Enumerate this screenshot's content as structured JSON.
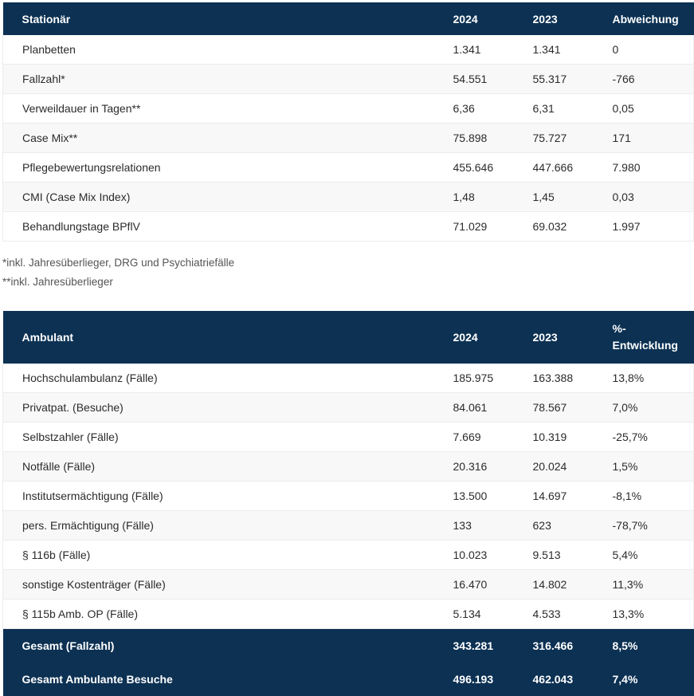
{
  "stationaer": {
    "headers": [
      "Stationär",
      "2024",
      "2023",
      "Abweichung"
    ],
    "rows": [
      [
        "Planbetten",
        "1.341",
        "1.341",
        "0"
      ],
      [
        "Fallzahl*",
        "54.551",
        "55.317",
        "-766"
      ],
      [
        "Verweildauer in Tagen**",
        "6,36",
        "6,31",
        "0,05"
      ],
      [
        "Case Mix**",
        "75.898",
        "75.727",
        "171"
      ],
      [
        "Pflegebewertungsrelationen",
        "455.646",
        "447.666",
        "7.980"
      ],
      [
        "CMI (Case Mix Index)",
        "1,48",
        "1,45",
        "0,03"
      ],
      [
        "Behandlungstage BPflV",
        "71.029",
        "69.032",
        "1.997"
      ]
    ]
  },
  "notes": {
    "note1": "*inkl. Jahresüberlieger, DRG und Psychiatriefälle",
    "note2": "**inkl. Jahresüberlieger"
  },
  "ambulant": {
    "headers": [
      "Ambulant",
      "2024",
      "2023",
      "%-",
      "Entwicklung"
    ],
    "rows": [
      [
        "Hochschulambulanz (Fälle)",
        "185.975",
        "163.388",
        "13,8%"
      ],
      [
        "Privatpat. (Besuche)",
        "84.061",
        "78.567",
        "7,0%"
      ],
      [
        "Selbstzahler (Fälle)",
        "7.669",
        "10.319",
        "-25,7%"
      ],
      [
        "Notfälle (Fälle)",
        "20.316",
        "20.024",
        "1,5%"
      ],
      [
        "Institutsermächtigung (Fälle)",
        "13.500",
        "14.697",
        "-8,1%"
      ],
      [
        "pers. Ermächtigung (Fälle)",
        "133",
        "623",
        "-78,7%"
      ],
      [
        "§ 116b (Fälle)",
        "10.023",
        "9.513",
        "5,4%"
      ],
      [
        "sonstige Kostenträger (Fälle)",
        "16.470",
        "14.802",
        "11,3%"
      ],
      [
        "§ 115b Amb. OP (Fälle)",
        "5.134",
        "4.533",
        "13,3%"
      ]
    ],
    "totals": [
      [
        "Gesamt (Fallzahl)",
        "343.281",
        "316.466",
        "8,5%"
      ],
      [
        "Gesamt Ambulante Besuche",
        "496.193",
        "462.043",
        "7,4%"
      ]
    ]
  }
}
